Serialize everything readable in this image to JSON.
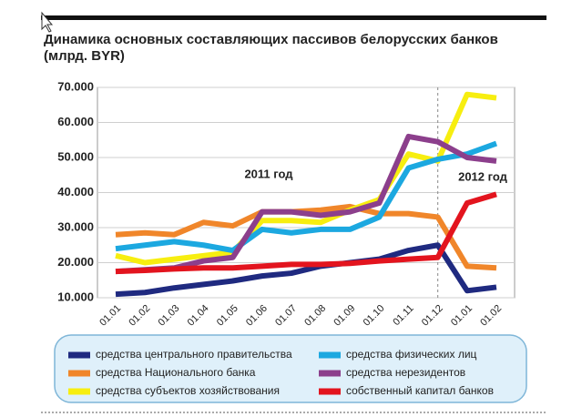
{
  "chart_data": {
    "type": "line",
    "title": "Динамика основных составляющих пассивов белорусских банков",
    "subtitle": "(млрд. BYR)",
    "annotations": [
      "2011 год",
      "2012 год"
    ],
    "categories": [
      "01.01",
      "01.02",
      "01.03",
      "01.04",
      "01.05",
      "01.06",
      "01.07",
      "01.08",
      "01.09",
      "01.10",
      "01.11",
      "01.12",
      "01.01",
      "01.02"
    ],
    "ylim": [
      10000,
      70000
    ],
    "yticks": [
      {
        "value": 10000,
        "label": "10.000"
      },
      {
        "value": 20000,
        "label": "20.000"
      },
      {
        "value": 30000,
        "label": "30.000"
      },
      {
        "value": 40000,
        "label": "40.000"
      },
      {
        "value": 50000,
        "label": "50.000"
      },
      {
        "value": 60000,
        "label": "60.000"
      },
      {
        "value": 70000,
        "label": "70.000"
      }
    ],
    "grid": true,
    "series": [
      {
        "name": "средства центрального правительства",
        "color": "#1f2a80",
        "values": [
          11000,
          11500,
          12800,
          13800,
          14800,
          16200,
          17000,
          19000,
          20000,
          21000,
          23500,
          25000,
          12000,
          13000
        ]
      },
      {
        "name": "средства Национального банка",
        "color": "#f0862a",
        "values": [
          28000,
          28500,
          28000,
          31500,
          30500,
          34500,
          34500,
          35000,
          36000,
          34000,
          34000,
          33000,
          19000,
          18500
        ]
      },
      {
        "name": "средства субъектов хозяйствования",
        "color": "#f7ee10",
        "values": [
          22000,
          20000,
          21000,
          22000,
          23000,
          32000,
          32000,
          31500,
          35000,
          38000,
          51000,
          49000,
          68000,
          67000
        ]
      },
      {
        "name": "средства физических лиц",
        "color": "#1ca8e0",
        "values": [
          24000,
          25000,
          26000,
          25000,
          23500,
          29500,
          28500,
          29500,
          29500,
          33000,
          47000,
          49500,
          51000,
          54000
        ]
      },
      {
        "name": "средства нерезидентов",
        "color": "#8c3f8c",
        "values": [
          17500,
          18000,
          18500,
          20500,
          21500,
          34500,
          34500,
          33500,
          34500,
          37000,
          56000,
          54500,
          50000,
          49000
        ]
      },
      {
        "name": "собственный капитал банков",
        "color": "#e3141e",
        "values": [
          17500,
          17800,
          18200,
          18500,
          18500,
          19000,
          19500,
          19500,
          19800,
          20500,
          21000,
          21500,
          37000,
          39500
        ]
      }
    ]
  }
}
